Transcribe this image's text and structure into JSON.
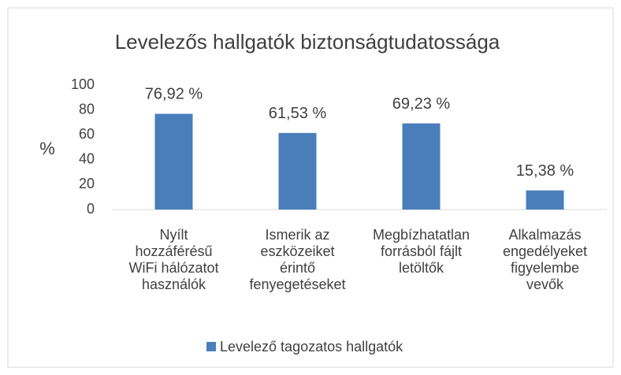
{
  "chart_data": {
    "type": "bar",
    "title": "Levelezős hallgatók biztonságtudatossága",
    "y_label": "%",
    "categories": [
      "Nyílt\nhozzáférésű\nWiFi hálózatot\nhasználók",
      "Ismerik az\neszközeiket\nérintő\nfenyegetéseket",
      "Megbízhatatlan\nforrásból fájlt\nletöltők",
      "Alkalmazás\nengedélyeket\nfigyelembe\nvevők"
    ],
    "series": [
      {
        "name": "Levelező tagozatos hallgatók",
        "color": "#4a7ebb",
        "values": [
          76.92,
          61.53,
          69.23,
          15.38
        ],
        "value_labels": [
          "76,92 %",
          "61,53 %",
          "69,23 %",
          "15,38 %"
        ]
      }
    ],
    "ylim": [
      0,
      100
    ],
    "yticks": [
      0,
      20,
      40,
      60,
      80,
      100
    ],
    "grid": false,
    "legend": "bottom"
  }
}
